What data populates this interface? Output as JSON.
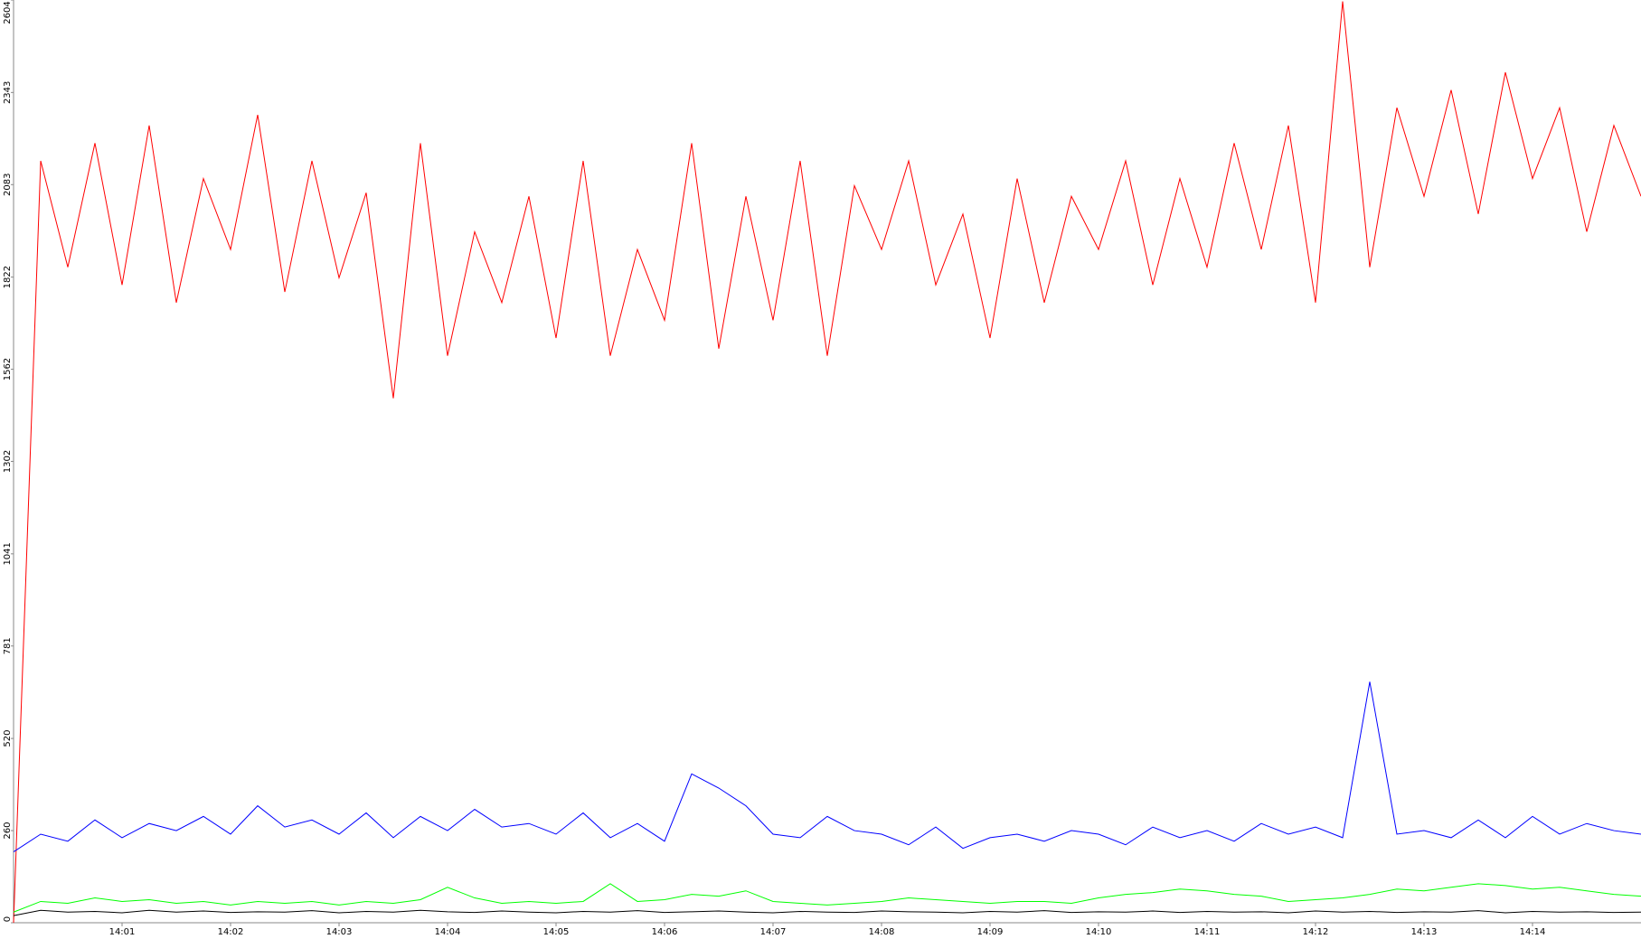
{
  "chart_data": {
    "type": "line",
    "x": [
      "14:00:00",
      "14:00:15",
      "14:00:30",
      "14:00:45",
      "14:01:00",
      "14:01:15",
      "14:01:30",
      "14:01:45",
      "14:02:00",
      "14:02:15",
      "14:02:30",
      "14:02:45",
      "14:03:00",
      "14:03:15",
      "14:03:30",
      "14:03:45",
      "14:04:00",
      "14:04:15",
      "14:04:30",
      "14:04:45",
      "14:05:00",
      "14:05:15",
      "14:05:30",
      "14:05:45",
      "14:06:00",
      "14:06:15",
      "14:06:30",
      "14:06:45",
      "14:07:00",
      "14:07:15",
      "14:07:30",
      "14:07:45",
      "14:08:00",
      "14:08:15",
      "14:08:30",
      "14:08:45",
      "14:09:00",
      "14:09:15",
      "14:09:30",
      "14:09:45",
      "14:10:00",
      "14:10:15",
      "14:10:30",
      "14:10:45",
      "14:11:00",
      "14:11:15",
      "14:11:30",
      "14:11:45",
      "14:12:00",
      "14:12:15",
      "14:12:30",
      "14:12:45",
      "14:13:00",
      "14:13:15",
      "14:13:30",
      "14:13:45",
      "14:14:00",
      "14:14:15",
      "14:14:30",
      "14:14:45",
      "14:15:00"
    ],
    "series": [
      {
        "color": "#ff0000",
        "values": [
          0,
          2150,
          1850,
          2200,
          1800,
          2250,
          1750,
          2100,
          1900,
          2280,
          1780,
          2150,
          1820,
          2060,
          1480,
          2200,
          1600,
          1950,
          1750,
          2050,
          1650,
          2150,
          1600,
          1900,
          1700,
          2200,
          1620,
          2050,
          1700,
          2150,
          1600,
          2080,
          1900,
          2150,
          1800,
          2000,
          1650,
          2100,
          1750,
          2050,
          1900,
          2150,
          1800,
          2100,
          1850,
          2200,
          1900,
          2250,
          1750,
          2600,
          1850,
          2300,
          2050,
          2350,
          2000,
          2400,
          2100,
          2300,
          1950,
          2250,
          2050
        ]
      },
      {
        "color": "#0000ff",
        "values": [
          200,
          250,
          230,
          290,
          240,
          280,
          260,
          300,
          250,
          330,
          270,
          290,
          250,
          310,
          240,
          300,
          260,
          320,
          270,
          280,
          250,
          310,
          240,
          280,
          230,
          420,
          380,
          330,
          250,
          240,
          300,
          260,
          250,
          220,
          270,
          210,
          240,
          250,
          230,
          260,
          250,
          220,
          270,
          240,
          260,
          230,
          280,
          250,
          270,
          240,
          680,
          250,
          260,
          240,
          290,
          240,
          300,
          250,
          280,
          260,
          250
        ]
      },
      {
        "color": "#00ff00",
        "values": [
          30,
          60,
          55,
          70,
          60,
          65,
          55,
          60,
          50,
          60,
          55,
          60,
          50,
          60,
          55,
          65,
          100,
          70,
          55,
          60,
          55,
          60,
          110,
          60,
          65,
          80,
          75,
          90,
          60,
          55,
          50,
          55,
          60,
          70,
          65,
          60,
          55,
          60,
          60,
          55,
          70,
          80,
          85,
          95,
          90,
          80,
          75,
          60,
          65,
          70,
          80,
          95,
          90,
          100,
          110,
          105,
          95,
          100,
          90,
          80,
          75
        ]
      },
      {
        "color": "#000000",
        "values": [
          20,
          35,
          30,
          32,
          28,
          35,
          30,
          33,
          29,
          31,
          30,
          34,
          28,
          32,
          30,
          35,
          31,
          29,
          33,
          30,
          28,
          32,
          30,
          34,
          29,
          31,
          33,
          30,
          28,
          32,
          30,
          29,
          33,
          31,
          30,
          28,
          32,
          30,
          34,
          29,
          31,
          30,
          33,
          29,
          32,
          30,
          31,
          28,
          33,
          30,
          32,
          29,
          31,
          30,
          34,
          28,
          32,
          30,
          31,
          29,
          30
        ]
      }
    ],
    "xlim": [
      "14:00:00",
      "14:15:00"
    ],
    "xticks": [
      "14:01",
      "14:02",
      "14:03",
      "14:04",
      "14:05",
      "14:06",
      "14:07",
      "14:08",
      "14:09",
      "14:10",
      "14:11",
      "14:12",
      "14:13",
      "14:14"
    ],
    "ylim": [
      0,
      2604
    ],
    "yticks": [
      0,
      260,
      520,
      781,
      1041,
      1302,
      1562,
      1822,
      2083,
      2343,
      2604
    ]
  }
}
